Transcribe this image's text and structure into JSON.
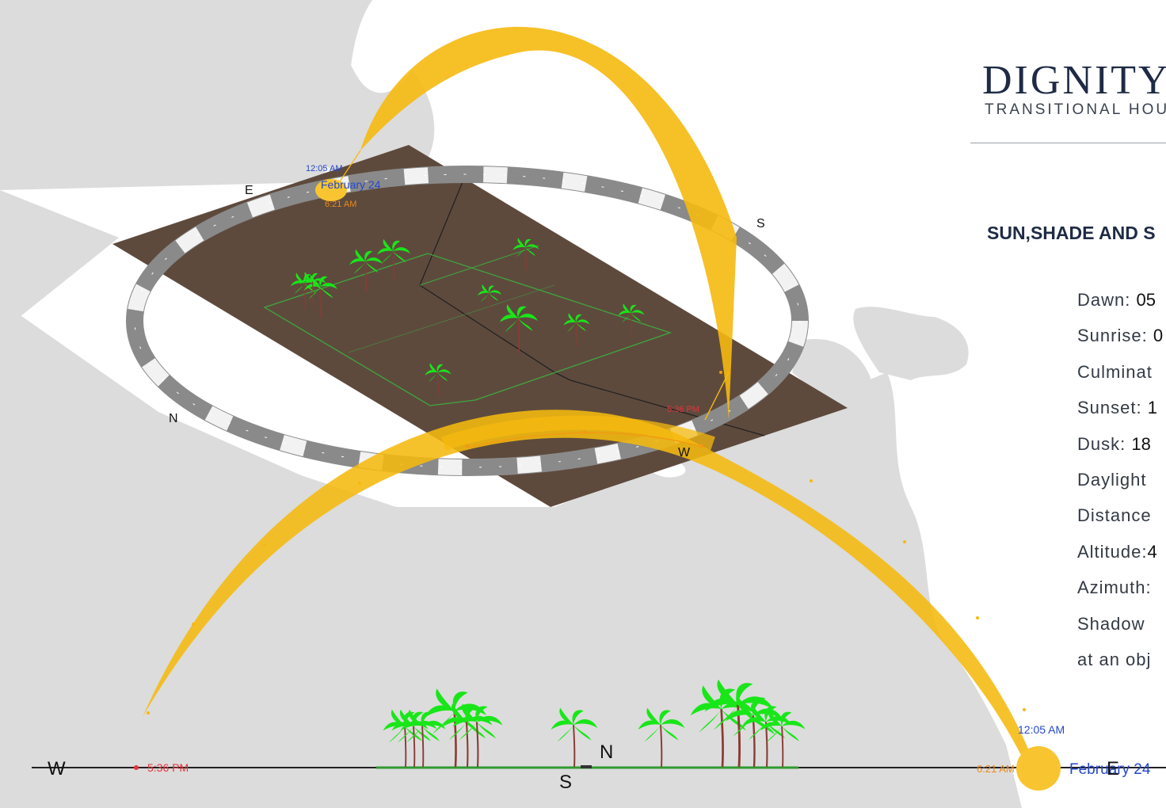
{
  "brand": {
    "title": "DIGNITY",
    "subtitle": "TRANSITIONAL HOU"
  },
  "section_title": "SUN,SHADE AND S",
  "sun_info": [
    {
      "label": "Dawn:",
      "value": "05"
    },
    {
      "label": "Sunrise:",
      "value": "0"
    },
    {
      "label": "Culminat",
      "value": ""
    },
    {
      "label": "Sunset:",
      "value": "1"
    },
    {
      "label": "Dusk:",
      "value": "18"
    },
    {
      "label": "Daylight",
      "value": ""
    },
    {
      "label": "Distance",
      "value": ""
    },
    {
      "label": "Altitude:",
      "value": "4"
    },
    {
      "label": "Azimuth:",
      "value": ""
    },
    {
      "label": "Shadow",
      "value": ""
    },
    {
      "label": "at an obj",
      "value": ""
    }
  ],
  "compass_plan": {
    "east": "E",
    "south": "S",
    "north": "N",
    "west": "W"
  },
  "compass_elevation": {
    "west": "W",
    "north": "N",
    "south": "S",
    "east": "E"
  },
  "plan_labels": {
    "culmination_time": "12:05 AM",
    "date": "February 24",
    "sunrise_time": "6:21 AM",
    "sunset_time": "5:36 PM"
  },
  "elevation_labels": {
    "culmination_time": "12:05 AM",
    "date": "February 24",
    "sunrise_time": "6:21 AM",
    "sunset_time": "5:36 PM"
  },
  "colors": {
    "map_land": "#dcdcdc",
    "site_plane": "#5e4a3d",
    "sun_path": "#f5b90f",
    "sun_disc": "#f8c531",
    "palm_leaf": "#19e619",
    "palm_trunk": "#8a3b34",
    "time_blue": "#2547c9",
    "time_orange": "#ea8a1d",
    "time_red": "#e8323c",
    "heading": "#1f2b45"
  }
}
